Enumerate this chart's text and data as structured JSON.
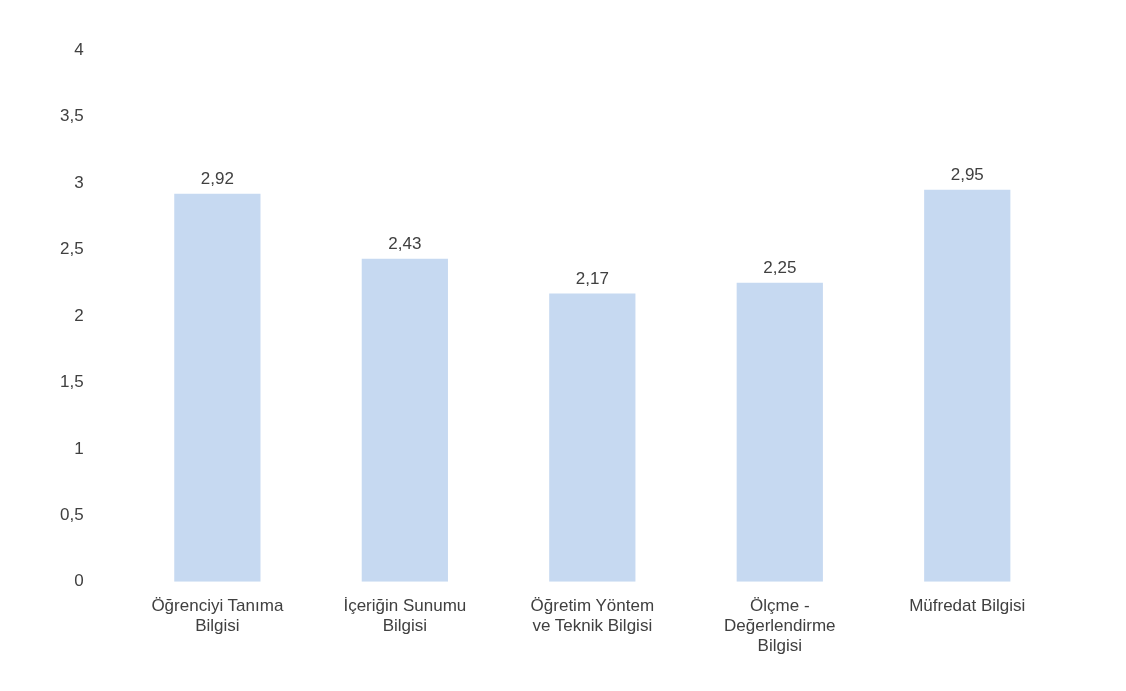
{
  "chart_data": {
    "type": "bar",
    "categories": [
      "Öğrenciyi Tanıma Bilgisi",
      "İçeriğin Sunumu Bilgisi",
      "Öğretim Yöntem ve Teknik Bilgisi",
      "Ölçme - Değerlendirme Bilgisi",
      "Müfredat Bilgisi"
    ],
    "values": [
      2.92,
      2.43,
      2.17,
      2.25,
      2.95
    ],
    "value_labels": [
      "2,92",
      "2,43",
      "2,17",
      "2,25",
      "2,95"
    ],
    "color": "#c6d9f1",
    "ylim": [
      0,
      4
    ],
    "yticks": [
      0,
      {
        "value": 0.5,
        "label": "0,5"
      },
      1,
      {
        "value": 1.5,
        "label": "1,5"
      },
      2,
      {
        "value": 2.5,
        "label": "2,5"
      },
      3,
      {
        "value": 3.5,
        "label": "3,5"
      },
      4
    ],
    "grid": false,
    "legend": false
  }
}
